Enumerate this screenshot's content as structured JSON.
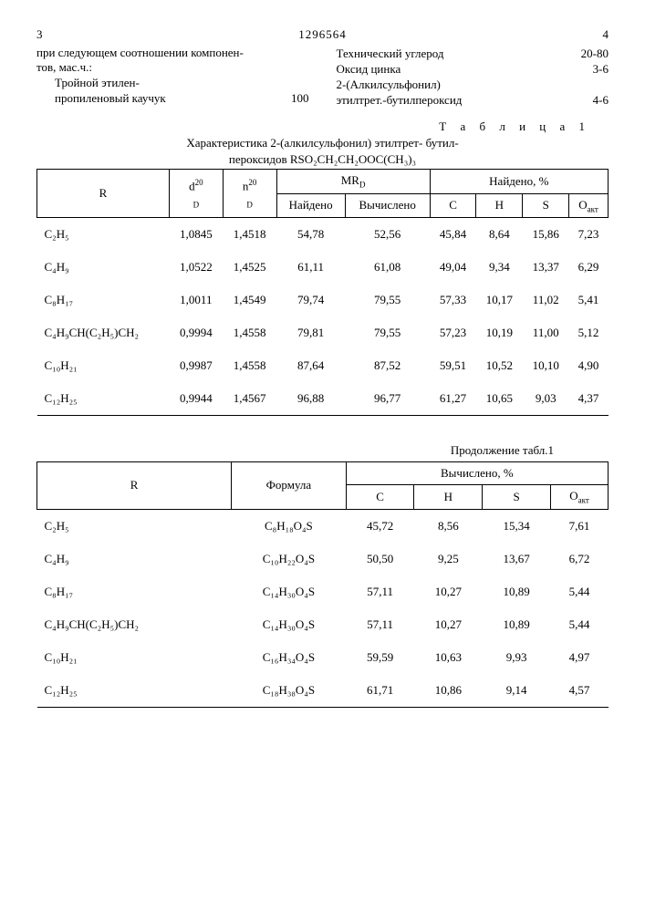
{
  "header": {
    "page_left": "3",
    "doc_id": "1296564",
    "page_right": "4"
  },
  "intro_left": {
    "line1": "при следующем соотношении компонен-",
    "line2": "тов, мас.ч.:",
    "comp1_name": "Тройной этилен-",
    "comp1b_name": "пропиленовый каучук",
    "comp1_val": "100"
  },
  "intro_right": {
    "r1_name": "Технический углерод",
    "r1_val": "20-80",
    "r2_name": "Оксид цинка",
    "r2_val": "3-6",
    "r3_name": "2-(Алкилсульфонил)",
    "r3_val": "",
    "r4_name": "этилтрет.-бутилпероксид",
    "r4_val": "4-6"
  },
  "table1": {
    "title_label": "Т а б л и ц а  1",
    "subtitle1": "Характеристика 2-(алкилсульфонил) этилтрет- бутил-",
    "subtitle2": "пероксидов RSO₂CH₂CH₂OOC(CH₃)₃",
    "headers": {
      "R": "R",
      "d": "d",
      "d_sup": "20",
      "d_sub": "D",
      "n": "n",
      "n_sup": "20",
      "n_sub": "D",
      "MR": "MR",
      "MR_sub": "D",
      "found_calc": [
        "Найдено",
        "Вычислено"
      ],
      "found_pct": "Найдено, %",
      "chs": [
        "C",
        "H",
        "S",
        "O"
      ],
      "O_sub": "акт"
    },
    "rows": [
      {
        "R": "C₂H₅",
        "d": "1,0845",
        "n": "1,4518",
        "mr1": "54,78",
        "mr2": "52,56",
        "c": "45,84",
        "h": "8,64",
        "s": "15,86",
        "o": "7,23"
      },
      {
        "R": "C₄H₉",
        "d": "1,0522",
        "n": "1,4525",
        "mr1": "61,11",
        "mr2": "61,08",
        "c": "49,04",
        "h": "9,34",
        "s": "13,37",
        "o": "6,29"
      },
      {
        "R": "C₈H₁₇",
        "d": "1,0011",
        "n": "1,4549",
        "mr1": "79,74",
        "mr2": "79,55",
        "c": "57,33",
        "h": "10,17",
        "s": "11,02",
        "o": "5,41"
      },
      {
        "R": "C₄H₉CH(C₂H₅)CH₂",
        "d": "0,9994",
        "n": "1,4558",
        "mr1": "79,81",
        "mr2": "79,55",
        "c": "57,23",
        "h": "10,19",
        "s": "11,00",
        "o": "5,12"
      },
      {
        "R": "C₁₀H₂₁",
        "d": "0,9987",
        "n": "1,4558",
        "mr1": "87,64",
        "mr2": "87,52",
        "c": "59,51",
        "h": "10,52",
        "s": "10,10",
        "o": "4,90"
      },
      {
        "R": "C₁₂H₂₅",
        "d": "0,9944",
        "n": "1,4567",
        "mr1": "96,88",
        "mr2": "96,77",
        "c": "61,27",
        "h": "10,65",
        "s": "9,03",
        "o": "4,37"
      }
    ]
  },
  "table2": {
    "cont": "Продолжение табл.1",
    "headers": {
      "R": "R",
      "formula": "Формула",
      "calc_pct": "Вычислено, %",
      "chs": [
        "C",
        "H",
        "S",
        "O"
      ],
      "O_sub": "акт"
    },
    "rows": [
      {
        "R": "C₂H₅",
        "f": "C₈H₁₈O₄S",
        "c": "45,72",
        "h": "8,56",
        "s": "15,34",
        "o": "7,61"
      },
      {
        "R": "C₄H₉",
        "f": "C₁₀H₂₂O₄S",
        "c": "50,50",
        "h": "9,25",
        "s": "13,67",
        "o": "6,72"
      },
      {
        "R": "C₈H₁₇",
        "f": "C₁₄H₃₀O₄S",
        "c": "57,11",
        "h": "10,27",
        "s": "10,89",
        "o": "5,44"
      },
      {
        "R": "C₄H₉CH(C₂H₅)CH₂",
        "f": "C₁₄H₃₀O₄S",
        "c": "57,11",
        "h": "10,27",
        "s": "10,89",
        "o": "5,44"
      },
      {
        "R": "C₁₀H₂₁",
        "f": "C₁₆H₃₄O₄S",
        "c": "59,59",
        "h": "10,63",
        "s": "9,93",
        "o": "4,97"
      },
      {
        "R": "C₁₂H₂₅",
        "f": "C₁₈H₃₈O₄S",
        "c": "61,71",
        "h": "10,86",
        "s": "9,14",
        "o": "4,57"
      }
    ]
  }
}
